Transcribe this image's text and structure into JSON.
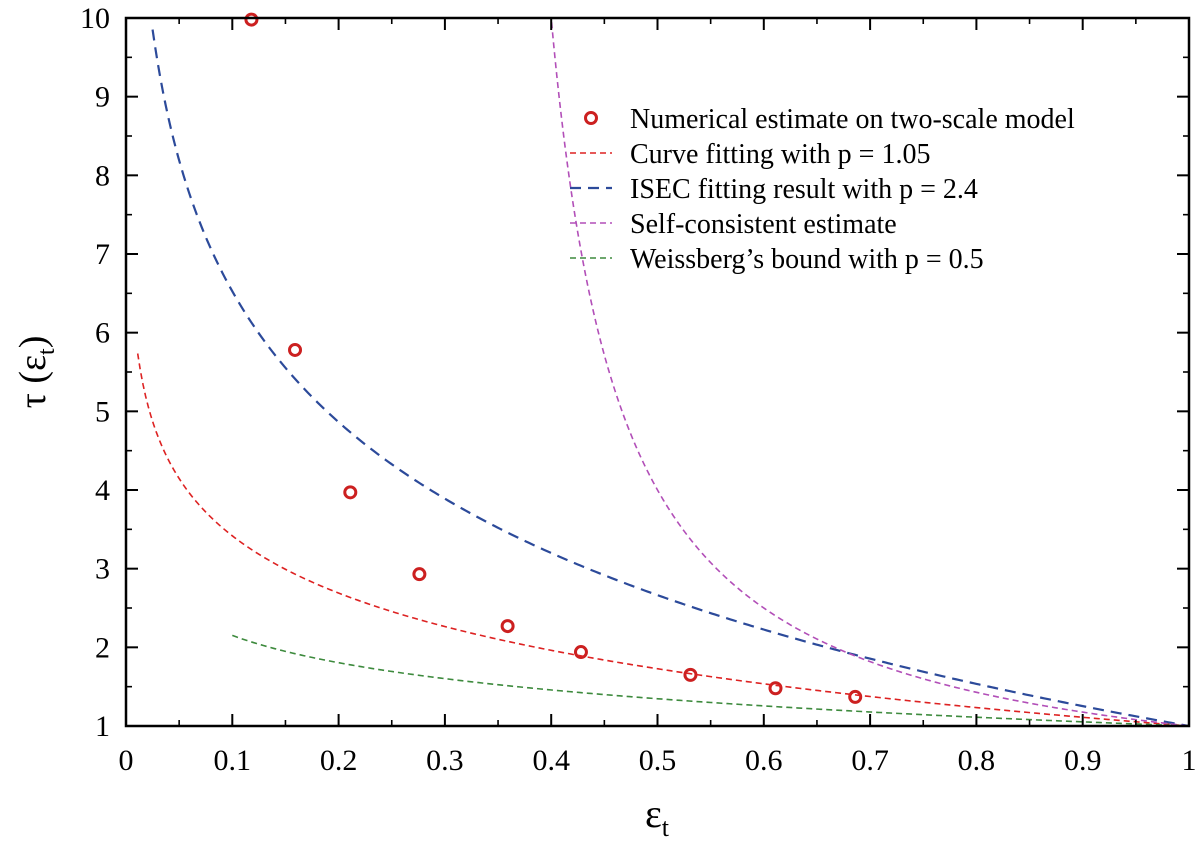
{
  "chart_data": {
    "type": "line",
    "title": "",
    "xlabel": "ε",
    "xlabel_sub": "t",
    "ylabel": "τ (ε",
    "ylabel_sub": "t",
    "ylabel_close": ")",
    "xlim": [
      0,
      1
    ],
    "ylim": [
      1,
      10
    ],
    "xticks": [
      0,
      0.1,
      0.2,
      0.3,
      0.4,
      0.5,
      0.6,
      0.7,
      0.8,
      0.9,
      1
    ],
    "xtick_labels": [
      "0",
      "0.1",
      "0.2",
      "0.3",
      "0.4",
      "0.5",
      "0.6",
      "0.7",
      "0.8",
      "0.9",
      "1"
    ],
    "yticks": [
      1,
      2,
      3,
      4,
      5,
      6,
      7,
      8,
      9,
      10
    ],
    "ytick_labels": [
      "1",
      "2",
      "3",
      "4",
      "5",
      "6",
      "7",
      "8",
      "9",
      "10"
    ],
    "grid": false,
    "legend_position": "top-right",
    "series": [
      {
        "key": "numerical",
        "name": "Numerical estimate on two-scale model",
        "kind": "scatter",
        "color": "#cc2020",
        "x": [
          0.118,
          0.159,
          0.211,
          0.276,
          0.359,
          0.428,
          0.531,
          0.611,
          0.686
        ],
        "y": [
          9.98,
          5.78,
          3.97,
          2.93,
          2.27,
          1.94,
          1.65,
          1.48,
          1.37
        ]
      },
      {
        "key": "curve_fit",
        "name": "Curve fitting with p = 1.05",
        "kind": "line",
        "color": "#dd2222",
        "p": 1.05,
        "x_range": [
          0.011,
          1
        ],
        "dash": "6,4",
        "width": 1.6
      },
      {
        "key": "isec",
        "name": "ISEC fitting result with p = 2.4",
        "kind": "line",
        "color": "#2c4a9a",
        "p": 2.4,
        "x_range": [
          0.025,
          1
        ],
        "dash": "11,7",
        "width": 2.2
      },
      {
        "key": "self_consistent",
        "name": "Self-consistent estimate",
        "kind": "line",
        "color": "#b24fb8",
        "x_range": [
          0.3535,
          1
        ],
        "dash": "6,4",
        "width": 1.6
      },
      {
        "key": "weissberg",
        "name": "Weissberg’s bound with p = 0.5",
        "kind": "line",
        "color": "#3d8a3d",
        "p": 0.5,
        "x_range": [
          0.1,
          1
        ],
        "dash": "6,4",
        "width": 1.6
      }
    ]
  }
}
